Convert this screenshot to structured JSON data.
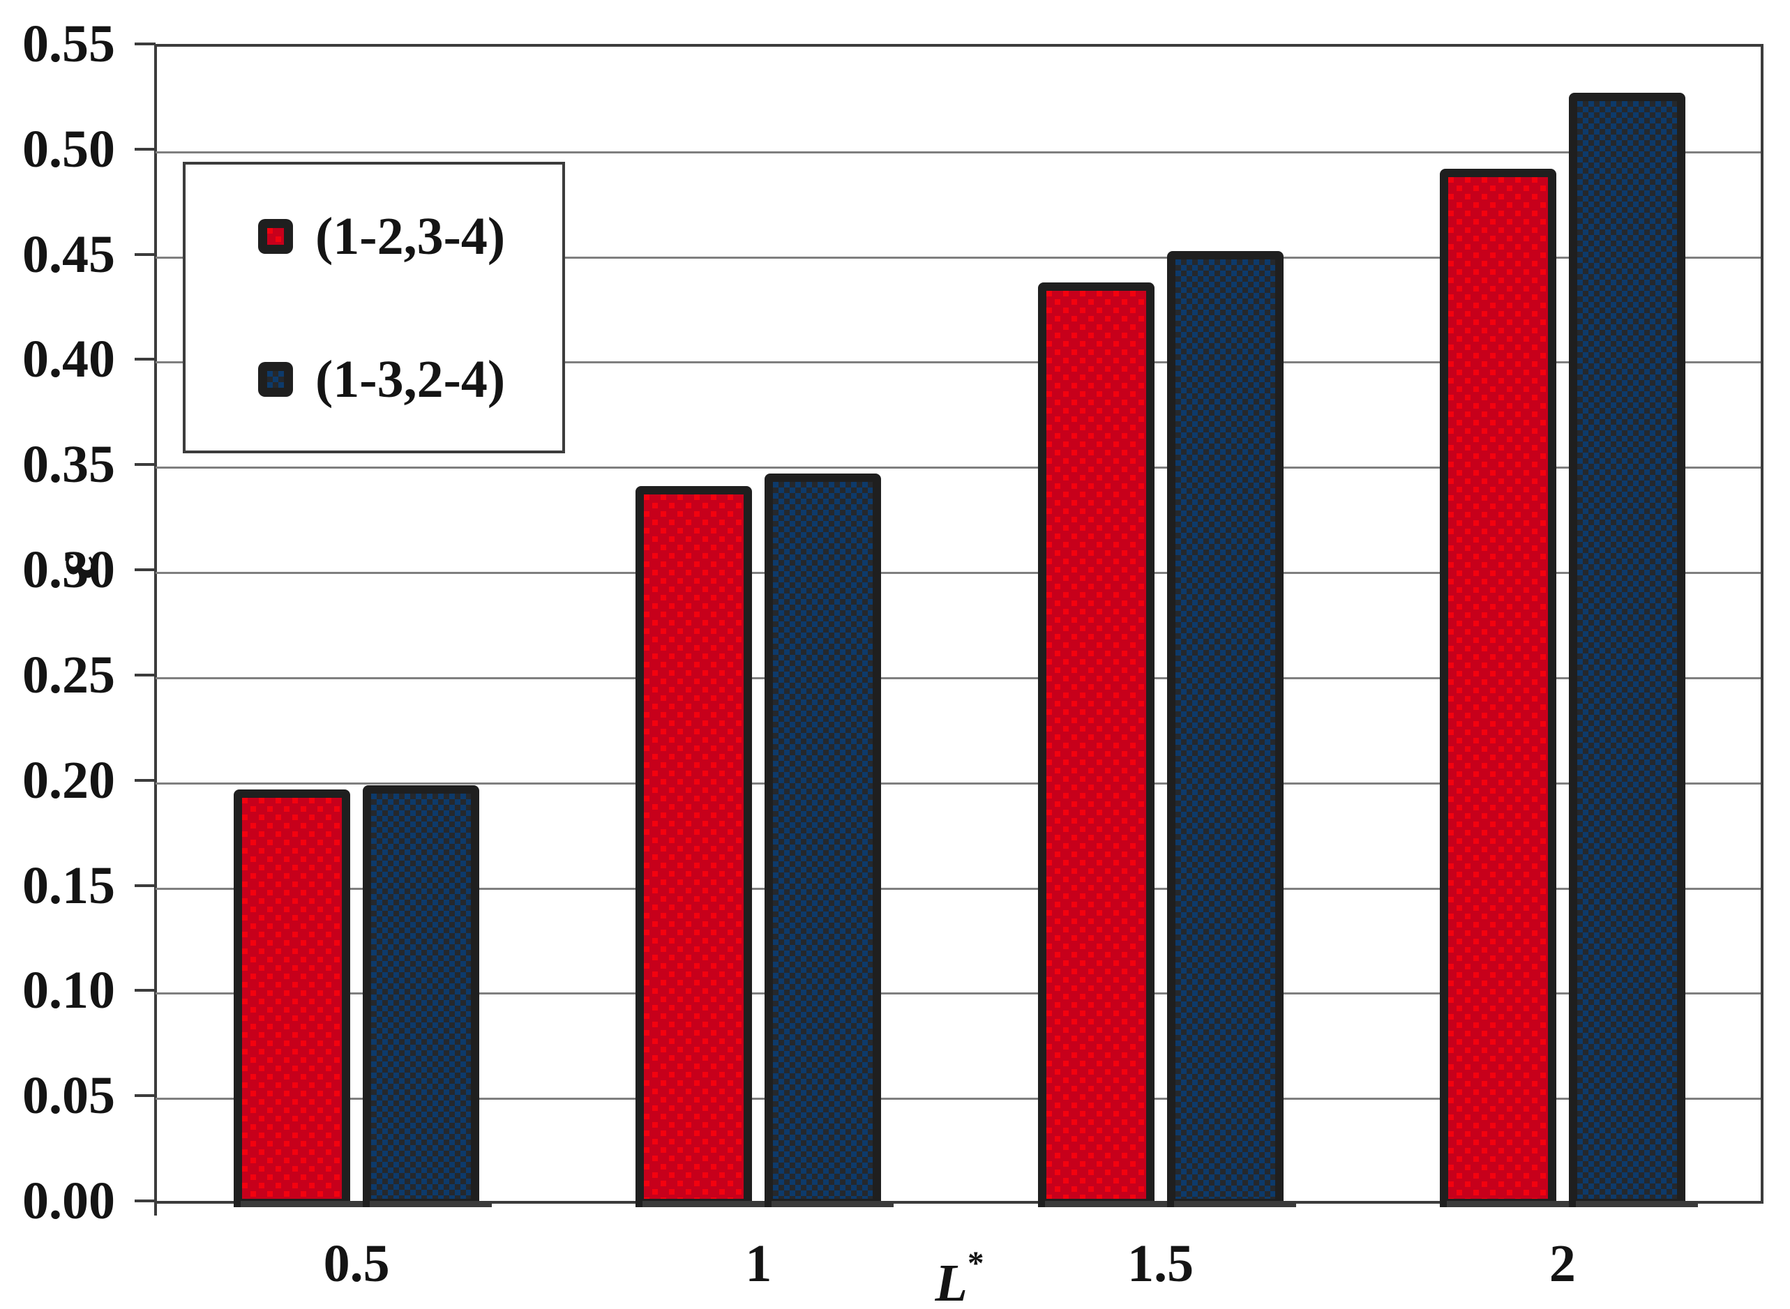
{
  "chart_data": {
    "type": "bar",
    "title": "",
    "xlabel_base": "L",
    "xlabel_sup": "*",
    "ylabel": "ε",
    "categories": [
      "0.5",
      "1",
      "1.5",
      "2"
    ],
    "series": [
      {
        "name": "(1-2,3-4)",
        "color_key": "red",
        "values": [
          0.195,
          0.339,
          0.436,
          0.49
        ]
      },
      {
        "name": "(1-3,2-4)",
        "color_key": "blue",
        "values": [
          0.197,
          0.345,
          0.451,
          0.526
        ]
      }
    ],
    "ylim": [
      0,
      0.55
    ],
    "y_tick_step": 0.05,
    "y_tick_labels": [
      "0.55",
      "0.50",
      "0.45",
      "0.40",
      "0.35",
      "0.30",
      "0.25",
      "0.20",
      "0.15",
      "0.10",
      "0.05",
      "0.00"
    ],
    "grid": "horizontal-gray-lines",
    "legend_position": "upper-left"
  },
  "colors": {
    "red_fill": "#C7001B",
    "red_dot": "#F3020F",
    "blue_fill": "#0D3A6B",
    "blue_check": "#25282C",
    "bar_border": "#1F1F1F",
    "gridline": "#7F7F7F",
    "frame": "#3C3C3C",
    "text": "#141414",
    "background": "#FFFFFF"
  }
}
